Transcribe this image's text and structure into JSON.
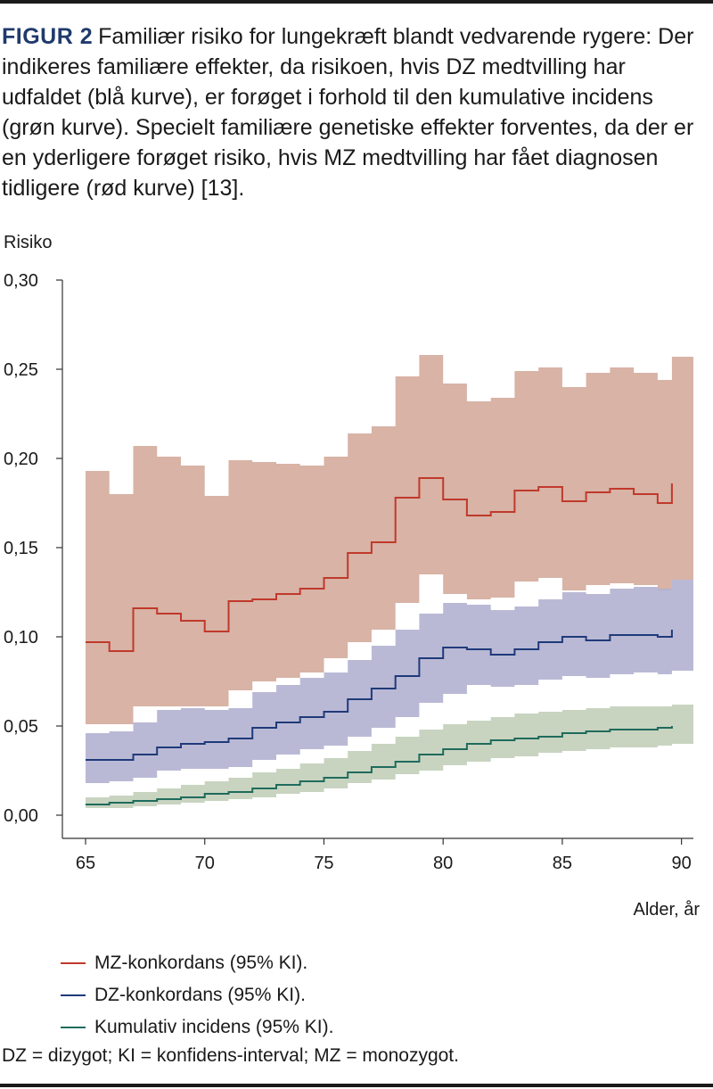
{
  "figure": {
    "label": "FIGUR 2",
    "caption": "Familiær risiko for lungekræft blandt vedvarende rygere: Der indikeres familiære effekter, da risikoen, hvis DZ medtvilling har udfaldet (blå kurve), er forøget i forhold til den kumulative incidens (grøn kurve). Specielt familiære genetiske effekter forventes, da der er en yderligere forøget risiko, hvis MZ medtvilling har fået diagnosen tidligere (rød kurve) [13].",
    "footnote": "DZ = dizygot; KI = konfidens-interval; MZ = monozygot."
  },
  "chart_data": {
    "type": "area",
    "ylabel": "Risiko",
    "xlabel": "Alder, år",
    "xlim": [
      65,
      90.5
    ],
    "ylim": [
      0,
      0.3
    ],
    "x_ticks": [
      65,
      70,
      75,
      80,
      85,
      90
    ],
    "x_tick_labels": [
      "65",
      "70",
      "75",
      "80",
      "85",
      "90"
    ],
    "y_ticks": [
      0,
      0.05,
      0.1,
      0.15,
      0.2,
      0.25,
      0.3
    ],
    "y_tick_labels": [
      "0,00",
      "0,05",
      "0,10",
      "0,15",
      "0,20",
      "0,25",
      "0,30"
    ],
    "grid": false,
    "legend_position": "bottom",
    "x_steps": [
      65,
      66,
      67,
      68,
      69,
      70,
      71,
      72,
      73,
      74,
      75,
      76,
      77,
      78,
      79,
      80,
      81,
      82,
      83,
      84,
      85,
      86,
      87,
      88,
      89,
      89.6
    ],
    "band_x_end": 90.5,
    "series": [
      {
        "name": "MZ-konkordans (95% KI).",
        "color": "#c0392b",
        "band_color": "#d8b3a6",
        "values": [
          0.097,
          0.092,
          0.116,
          0.113,
          0.109,
          0.103,
          0.12,
          0.121,
          0.124,
          0.127,
          0.133,
          0.147,
          0.153,
          0.178,
          0.189,
          0.177,
          0.168,
          0.17,
          0.182,
          0.184,
          0.176,
          0.181,
          0.183,
          0.18,
          0.175,
          0.186
        ],
        "upper": [
          0.193,
          0.18,
          0.207,
          0.201,
          0.196,
          0.179,
          0.199,
          0.198,
          0.197,
          0.196,
          0.201,
          0.214,
          0.218,
          0.246,
          0.258,
          0.242,
          0.232,
          0.234,
          0.249,
          0.251,
          0.24,
          0.248,
          0.251,
          0.248,
          0.244,
          0.257
        ],
        "lower": [
          0.051,
          0.051,
          0.061,
          0.061,
          0.061,
          0.061,
          0.07,
          0.075,
          0.077,
          0.08,
          0.088,
          0.097,
          0.104,
          0.119,
          0.135,
          0.124,
          0.121,
          0.122,
          0.131,
          0.133,
          0.126,
          0.129,
          0.13,
          0.129,
          0.126,
          0.132
        ]
      },
      {
        "name": "DZ-konkordans (95% KI).",
        "color": "#1f3a7a",
        "band_color": "#b3b1d0",
        "values": [
          0.031,
          0.031,
          0.034,
          0.038,
          0.04,
          0.041,
          0.043,
          0.049,
          0.052,
          0.055,
          0.058,
          0.065,
          0.071,
          0.078,
          0.088,
          0.094,
          0.093,
          0.09,
          0.093,
          0.097,
          0.1,
          0.098,
          0.101,
          0.101,
          0.1,
          0.104
        ],
        "upper": [
          0.046,
          0.047,
          0.052,
          0.059,
          0.06,
          0.059,
          0.06,
          0.069,
          0.073,
          0.077,
          0.08,
          0.087,
          0.095,
          0.104,
          0.113,
          0.119,
          0.118,
          0.115,
          0.117,
          0.121,
          0.125,
          0.124,
          0.127,
          0.128,
          0.127,
          0.132
        ],
        "lower": [
          0.018,
          0.019,
          0.021,
          0.025,
          0.026,
          0.026,
          0.027,
          0.031,
          0.034,
          0.037,
          0.039,
          0.044,
          0.049,
          0.055,
          0.063,
          0.068,
          0.073,
          0.072,
          0.073,
          0.076,
          0.078,
          0.077,
          0.079,
          0.08,
          0.079,
          0.081
        ]
      },
      {
        "name": "Kumulativ incidens (95% KI).",
        "color": "#1f6b5c",
        "band_color": "#c2cfb9",
        "values": [
          0.006,
          0.007,
          0.008,
          0.009,
          0.01,
          0.012,
          0.013,
          0.015,
          0.017,
          0.019,
          0.021,
          0.024,
          0.027,
          0.03,
          0.034,
          0.037,
          0.04,
          0.042,
          0.043,
          0.044,
          0.046,
          0.047,
          0.048,
          0.048,
          0.049,
          0.05
        ],
        "upper": [
          0.01,
          0.011,
          0.013,
          0.015,
          0.017,
          0.019,
          0.021,
          0.024,
          0.026,
          0.029,
          0.032,
          0.036,
          0.04,
          0.044,
          0.048,
          0.051,
          0.053,
          0.055,
          0.057,
          0.058,
          0.059,
          0.06,
          0.061,
          0.061,
          0.061,
          0.062
        ],
        "lower": [
          0.004,
          0.004,
          0.005,
          0.006,
          0.007,
          0.008,
          0.009,
          0.01,
          0.012,
          0.013,
          0.015,
          0.018,
          0.02,
          0.023,
          0.025,
          0.028,
          0.03,
          0.032,
          0.033,
          0.035,
          0.036,
          0.037,
          0.038,
          0.038,
          0.039,
          0.04
        ]
      }
    ]
  }
}
